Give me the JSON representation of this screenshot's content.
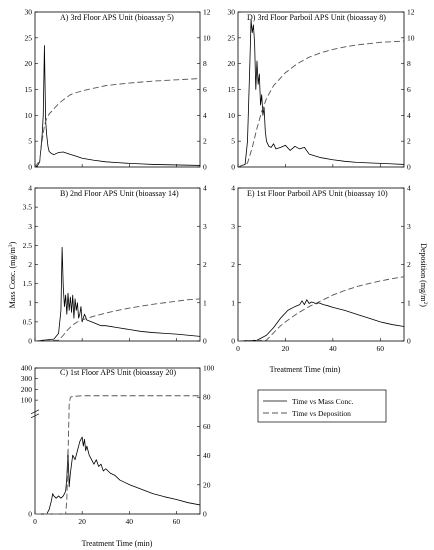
{
  "chart_data": [
    {
      "id": "A",
      "type": "line",
      "title": "A) 3rd Floor APS Unit (bioassay 5)",
      "xlim": [
        0,
        70
      ],
      "ylim_left": [
        0,
        30
      ],
      "ylim_right": [
        0,
        12
      ],
      "left_ticks": [
        0,
        5,
        10,
        15,
        20,
        25,
        30
      ],
      "right_ticks": [
        0,
        2,
        4,
        6,
        8,
        10,
        12
      ],
      "series": [
        {
          "axis": "left",
          "x": [
            0,
            1,
            2,
            3,
            3.5,
            4,
            4.5,
            5,
            5.5,
            6,
            7,
            8,
            9,
            10,
            12,
            14,
            16,
            18,
            20,
            25,
            30,
            35,
            40,
            45,
            50,
            55,
            60,
            65,
            70
          ],
          "y": [
            0,
            0.2,
            1,
            6,
            10,
            23.5,
            9,
            6,
            4,
            3,
            2.6,
            2.4,
            2.6,
            2.8,
            2.9,
            2.6,
            2.3,
            2,
            1.7,
            1.3,
            1,
            0.85,
            0.7,
            0.6,
            0.5,
            0.45,
            0.4,
            0.35,
            0.3
          ]
        },
        {
          "axis": "right",
          "x": [
            0,
            2,
            3,
            4,
            5,
            6,
            8,
            10,
            12,
            15,
            20,
            25,
            30,
            35,
            40,
            50,
            60,
            70
          ],
          "y": [
            0,
            0.5,
            2,
            3.2,
            3.8,
            4.1,
            4.5,
            4.9,
            5.2,
            5.6,
            5.9,
            6.1,
            6.3,
            6.4,
            6.5,
            6.65,
            6.75,
            6.85
          ]
        }
      ]
    },
    {
      "id": "D",
      "type": "line",
      "title": "D) 3rd Floor Parboil APS Unit (bioassay 8)",
      "xlim": [
        0,
        70
      ],
      "ylim_left": [
        0,
        30
      ],
      "ylim_right": [
        0,
        12
      ],
      "left_ticks": [
        0,
        5,
        10,
        15,
        20,
        25,
        30
      ],
      "right_ticks": [
        0,
        2,
        4,
        6,
        8,
        10,
        12
      ],
      "series": [
        {
          "axis": "left",
          "x": [
            0,
            3,
            4,
            5,
            5.5,
            6,
            6.5,
            7,
            7.5,
            8,
            8.5,
            9,
            9.5,
            10,
            10.5,
            11,
            11.5,
            12,
            13,
            14,
            15,
            16,
            18,
            20,
            22,
            24,
            26,
            28,
            30,
            35,
            40,
            45,
            50,
            55,
            60,
            65,
            70
          ],
          "y": [
            0,
            0.5,
            5,
            20,
            28.5,
            26,
            27.5,
            24,
            15,
            20.5,
            16,
            18,
            12,
            14,
            10,
            11.5,
            7,
            5,
            4,
            3.8,
            4.5,
            3.5,
            3.8,
            4.2,
            3.2,
            4,
            3.5,
            3.8,
            2.5,
            1.8,
            1.4,
            1.1,
            0.9,
            0.8,
            0.7,
            0.6,
            0.5
          ]
        },
        {
          "axis": "right",
          "x": [
            0,
            4,
            6,
            8,
            10,
            12,
            15,
            20,
            25,
            30,
            35,
            40,
            45,
            50,
            55,
            60,
            65,
            70
          ],
          "y": [
            0,
            0.3,
            1.5,
            3,
            4.3,
            5.3,
            6.3,
            7.3,
            8,
            8.5,
            8.85,
            9.1,
            9.3,
            9.45,
            9.55,
            9.65,
            9.7,
            9.75
          ]
        }
      ]
    },
    {
      "id": "B",
      "type": "line",
      "title": "B) 2nd Floor APS Unit (bioassay 14)",
      "xlim": [
        0,
        70
      ],
      "ylim_left": [
        0,
        4
      ],
      "ylim_right": [
        0,
        4
      ],
      "left_ticks": [
        0,
        0.5,
        1,
        1.5,
        2,
        2.5,
        3,
        3.5,
        4
      ],
      "right_ticks": [
        0,
        1,
        2,
        3,
        4
      ],
      "series": [
        {
          "axis": "left",
          "x": [
            0,
            8,
            10,
            11,
            11.5,
            12,
            12.5,
            13,
            13.5,
            14,
            14.5,
            15,
            15.5,
            16,
            16.5,
            17,
            17.5,
            18,
            18.5,
            19,
            19.5,
            20,
            21,
            22,
            24,
            26,
            28,
            30,
            35,
            40,
            45,
            50,
            55,
            60,
            65,
            70
          ],
          "y": [
            0,
            0.05,
            0.2,
            0.8,
            2.45,
            1.4,
            0.9,
            1.2,
            0.7,
            1.25,
            0.8,
            1.15,
            0.75,
            1.2,
            0.6,
            1.1,
            0.8,
            1.0,
            0.6,
            0.7,
            0.9,
            0.5,
            0.7,
            0.55,
            0.5,
            0.45,
            0.4,
            0.4,
            0.35,
            0.3,
            0.25,
            0.22,
            0.2,
            0.18,
            0.15,
            0.12
          ]
        },
        {
          "axis": "right",
          "x": [
            0,
            10,
            12,
            14,
            16,
            18,
            20,
            25,
            30,
            35,
            40,
            45,
            50,
            55,
            60,
            65,
            70
          ],
          "y": [
            0,
            0.02,
            0.15,
            0.3,
            0.42,
            0.5,
            0.55,
            0.65,
            0.73,
            0.8,
            0.86,
            0.91,
            0.96,
            1.0,
            1.04,
            1.08,
            1.1
          ]
        }
      ]
    },
    {
      "id": "E",
      "type": "line",
      "title": "E) 1st Floor Parboil APS Unit (bioassay 10)",
      "xlim": [
        0,
        70
      ],
      "ylim_left": [
        0,
        4
      ],
      "ylim_right": [
        0,
        4
      ],
      "left_ticks": [
        0,
        1,
        2,
        3,
        4
      ],
      "right_ticks": [
        0,
        1,
        2,
        3,
        4
      ],
      "xticks": [
        0,
        20,
        40,
        60
      ],
      "xlabel": "Treatment Time (min)",
      "series": [
        {
          "axis": "left",
          "x": [
            0,
            8,
            12,
            15,
            18,
            21,
            24,
            26,
            27,
            28,
            29,
            30,
            31,
            32,
            33,
            34,
            36,
            38,
            40,
            45,
            50,
            55,
            60,
            65,
            70
          ],
          "y": [
            0,
            0.02,
            0.15,
            0.35,
            0.6,
            0.8,
            0.9,
            0.95,
            1.05,
            0.95,
            1.08,
            0.98,
            1.02,
            1.0,
            0.97,
            1.0,
            0.95,
            0.92,
            0.88,
            0.8,
            0.7,
            0.6,
            0.5,
            0.43,
            0.38
          ]
        },
        {
          "axis": "right",
          "x": [
            0,
            12,
            14,
            16,
            18,
            20,
            25,
            30,
            35,
            40,
            45,
            50,
            55,
            60,
            65,
            70
          ],
          "y": [
            0,
            0.02,
            0.15,
            0.28,
            0.4,
            0.5,
            0.72,
            0.9,
            1.05,
            1.2,
            1.32,
            1.42,
            1.5,
            1.57,
            1.63,
            1.68
          ]
        }
      ]
    },
    {
      "id": "C",
      "type": "line",
      "title": "C) 1st Floor APS Unit (bioassay 20)",
      "xlim": [
        0,
        70
      ],
      "ylim_right": [
        0,
        100
      ],
      "left_ticks_lower": [
        0
      ],
      "left_ticks_upper": [
        100,
        200,
        300,
        400
      ],
      "right_ticks": [
        0,
        20,
        40,
        60,
        80,
        100
      ],
      "xticks": [
        0,
        20,
        40,
        60
      ],
      "xlabel": "Treatment Time (min)",
      "series": [
        {
          "axis": "left-broken",
          "x": [
            0,
            5,
            6,
            7,
            7.5,
            8,
            9,
            10,
            11,
            12,
            13,
            13.5,
            14,
            14.5,
            15,
            16,
            17,
            18,
            19,
            20,
            20.5,
            21,
            21.5,
            22,
            23,
            24,
            25,
            26,
            27,
            28,
            29,
            30,
            32,
            34,
            36,
            38,
            40,
            45,
            50,
            55,
            60,
            65,
            70
          ],
          "y": [
            0,
            0,
            1,
            3,
            4.5,
            4,
            3.5,
            4,
            3.5,
            4,
            5,
            8,
            14,
            6,
            9,
            13,
            12,
            14,
            16,
            17,
            15,
            16.5,
            14,
            15,
            13,
            12,
            11,
            12,
            10.5,
            11,
            9.5,
            10,
            9,
            8.5,
            7.5,
            7,
            6.5,
            5.5,
            4.5,
            3.8,
            3.2,
            2.5,
            2
          ]
        },
        {
          "axis": "right",
          "x": [
            0,
            13,
            13.5,
            14,
            14.5,
            15,
            16,
            20,
            30,
            40,
            50,
            60,
            70
          ],
          "y": [
            0,
            0,
            10,
            40,
            75,
            80,
            80.5,
            81,
            81,
            81,
            81,
            81,
            81
          ]
        }
      ]
    }
  ],
  "shared": {
    "ylabel_left": "Mass Conc. (mg/m",
    "ylabel_left_sup": "3",
    "ylabel_left_close": ")",
    "ylabel_right": "Deposition (mg/m",
    "ylabel_right_sup": "2",
    "ylabel_right_close": ")"
  },
  "legend": {
    "placement": "right-middle",
    "items": [
      {
        "label": "Time vs Mass Conc.",
        "style": "solid"
      },
      {
        "label": "Time vs Deposition",
        "style": "dashed"
      }
    ]
  }
}
